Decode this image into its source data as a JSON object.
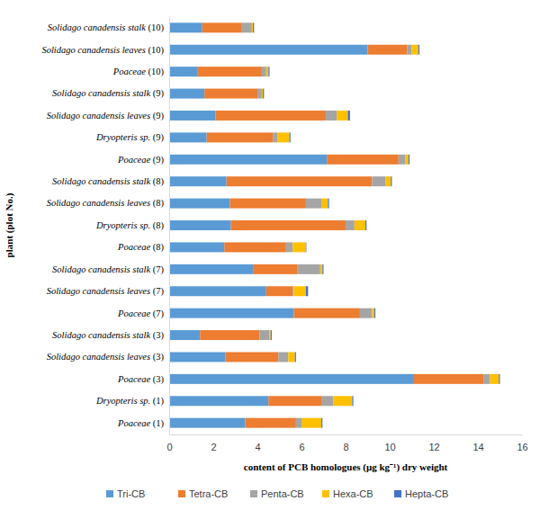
{
  "chart_data": {
    "type": "bar",
    "orientation": "horizontal",
    "stacked": true,
    "grid": false,
    "legend": "bottom",
    "x_label": "content of PCB homologues (μg kg⁻¹) dry weight",
    "y_label": "plant (plot No.)",
    "categories": [
      "Poaceae (1)",
      "Dryopteris sp. (1)",
      "Poaceae (3)",
      "Solidago canadensis leaves (3)",
      "Solidago canadensis stalk (3)",
      "Poaceae (7)",
      "Solidago canadensis leaves (7)",
      "Solidago canadensis stalk (7)",
      "Poaceae (8)",
      "Dryopteris sp. (8)",
      "Solidago canadensis leaves (8)",
      "Solidago canadensis stalk (8)",
      "Poaceae (9)",
      "Dryopteris sp. (9)",
      "Solidago canadensis leaves (9)",
      "Solidago canadensis stalk (9)",
      "Poaceae (10)",
      "Solidago canadensis leaves (10)",
      "Solidago canadensis stalk (10)"
    ],
    "series": [
      {
        "name": "Tri-CB",
        "color": "#5b9bd5",
        "values": [
          3.45,
          4.5,
          11.1,
          2.55,
          1.4,
          5.65,
          4.4,
          3.8,
          2.5,
          2.8,
          2.75,
          2.6,
          7.15,
          1.7,
          2.1,
          1.6,
          1.3,
          9.0,
          1.5
        ]
      },
      {
        "name": "Tetra-CB",
        "color": "#ed7d31",
        "values": [
          2.3,
          2.4,
          3.15,
          2.4,
          2.7,
          3.0,
          1.2,
          2.0,
          2.8,
          5.2,
          3.45,
          6.6,
          3.25,
          3.0,
          5.0,
          2.4,
          2.9,
          1.8,
          1.8
        ]
      },
      {
        "name": "Penta-CB",
        "color": "#a5a5a5",
        "values": [
          0.25,
          0.55,
          0.3,
          0.45,
          0.45,
          0.55,
          0.05,
          1.05,
          0.3,
          0.4,
          0.7,
          0.6,
          0.3,
          0.2,
          0.5,
          0.2,
          0.2,
          0.2,
          0.45
        ]
      },
      {
        "name": "Hexa-CB",
        "color": "#ffc000",
        "values": [
          0.9,
          0.85,
          0.4,
          0.3,
          0.05,
          0.1,
          0.55,
          0.1,
          0.6,
          0.5,
          0.3,
          0.25,
          0.15,
          0.55,
          0.5,
          0.05,
          0.1,
          0.3,
          0.05
        ]
      },
      {
        "name": "Hepta-CB",
        "color": "#4472c4",
        "values": [
          0.05,
          0.05,
          0.05,
          0.05,
          0.05,
          0.05,
          0.1,
          0.05,
          0.02,
          0.05,
          0.05,
          0.05,
          0.05,
          0.05,
          0.1,
          0.05,
          0.05,
          0.05,
          0.05
        ]
      }
    ],
    "xlim": [
      0,
      16
    ],
    "xticks": [
      0,
      2,
      4,
      6,
      8,
      10,
      12,
      14,
      16
    ]
  }
}
